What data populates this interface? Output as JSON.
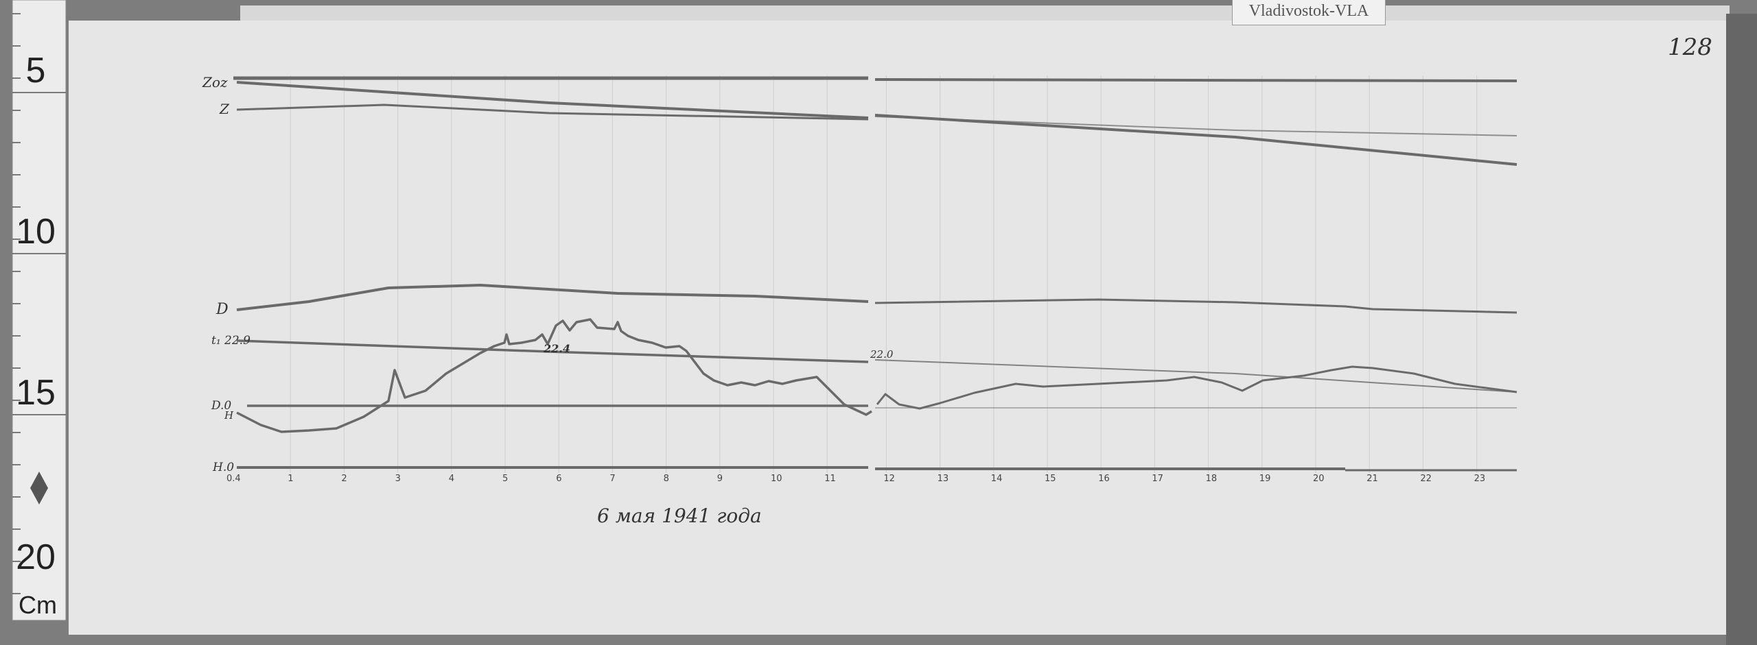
{
  "station_tag": "Vladivostok-VLA",
  "sheet_number": "128",
  "ruler": {
    "marks": [
      "5",
      "10",
      "15",
      "20"
    ],
    "unit": "Cm"
  },
  "trace_labels": {
    "zoz": "Zoz",
    "z": "Z",
    "d": "D",
    "t": "t₁ 22.9",
    "d0": "D.0",
    "h": "H",
    "h0": "H.0"
  },
  "annotations": {
    "t_mid": "22.4",
    "t_noon": "22.0"
  },
  "hour_labels": [
    "0.4",
    "1",
    "2",
    "3",
    "4",
    "5",
    "6",
    "7",
    "8",
    "9",
    "10",
    "11",
    "12",
    "13",
    "14",
    "15",
    "16",
    "17",
    "18",
    "19",
    "20",
    "21",
    "22",
    "23"
  ],
  "date_caption": "6 мая 1941 года",
  "colors": {
    "paper": "#e6e6e6",
    "trace": "#6a6a6a",
    "background": "#7a7a7a"
  }
}
